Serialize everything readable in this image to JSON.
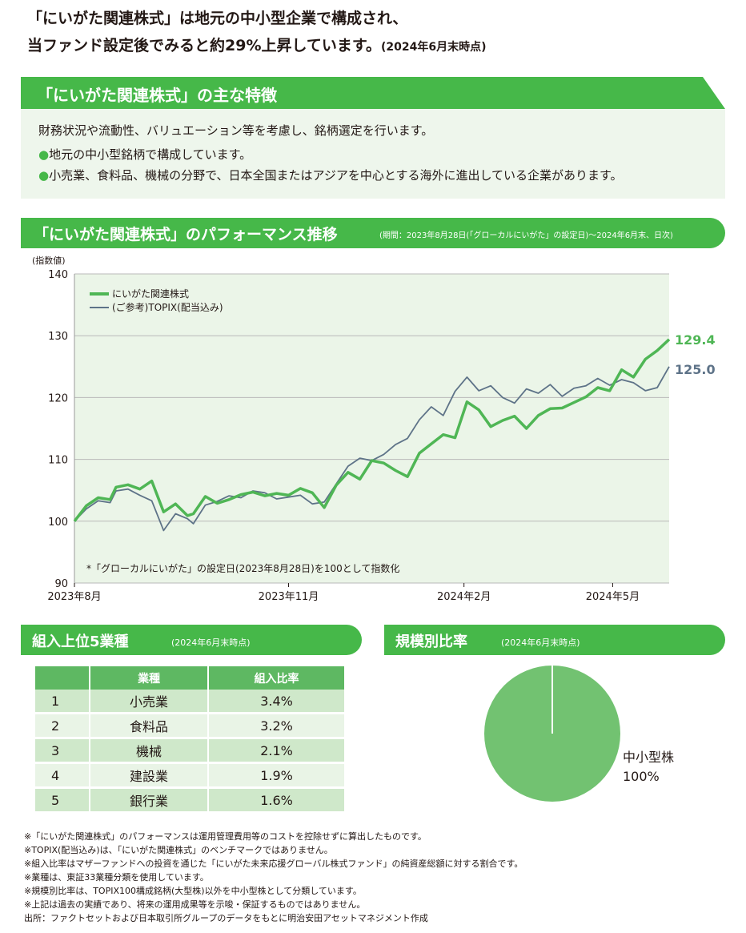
{
  "intro": {
    "line1": "「にいがた関連株式」は地元の中小型企業で構成され、",
    "line2": "当ファンド設定後でみると約29%上昇しています。",
    "line2_note": "(2024年6月末時点)"
  },
  "features": {
    "title": "「にいがた関連株式」の主な特徴",
    "lead": "財務状況や流動性、バリュエーション等を考慮し、銘柄選定を行います。",
    "bullet_mark": "●",
    "bullets": [
      "地元の中小型銘柄で構成しています。",
      "小売業、食料品、機械の分野で、日本全国またはアジアを中心とする海外に進出している企業があります。"
    ]
  },
  "performance": {
    "title": "「にいがた関連株式」のパフォーマンス推移",
    "subtitle": "(期間：2023年8月28日(「グローカルにいがた」の設定日)～2024年6月末、日次)"
  },
  "chart_data": {
    "type": "line",
    "ylabel": "(指数値)",
    "ylim": [
      90,
      140
    ],
    "yticks": [
      "140",
      "130",
      "120",
      "110",
      "100",
      "90"
    ],
    "xticks": [
      "2023年8月",
      "2023年11月",
      "2024年2月",
      "2024年5月"
    ],
    "grid": true,
    "legend_position": "top-left",
    "note": "*「グローカルにいがた」の設定日(2023年8月28日)を100として指数化",
    "series": [
      {
        "name": "にいがた関連株式",
        "color": "#4fb655",
        "end_label": "129.4",
        "x": [
          0,
          0.02,
          0.04,
          0.06,
          0.07,
          0.09,
          0.11,
          0.13,
          0.15,
          0.17,
          0.19,
          0.2,
          0.22,
          0.24,
          0.26,
          0.28,
          0.3,
          0.32,
          0.34,
          0.36,
          0.38,
          0.4,
          0.42,
          0.44,
          0.46,
          0.48,
          0.5,
          0.52,
          0.54,
          0.56,
          0.58,
          0.6,
          0.62,
          0.64,
          0.66,
          0.68,
          0.7,
          0.72,
          0.74,
          0.76,
          0.78,
          0.8,
          0.82,
          0.84,
          0.86,
          0.88,
          0.9,
          0.92,
          0.94,
          0.96,
          0.98,
          1.0
        ],
        "values": [
          100,
          102.5,
          103.8,
          103.5,
          105.5,
          105.9,
          105.2,
          106.5,
          101.5,
          102.8,
          100.9,
          101.2,
          104.0,
          102.9,
          103.5,
          104.3,
          104.7,
          104.1,
          104.5,
          104.2,
          105.3,
          104.6,
          102.2,
          105.8,
          107.9,
          106.8,
          109.8,
          109.4,
          108.2,
          107.2,
          111.0,
          112.5,
          114.0,
          113.5,
          119.3,
          118.0,
          115.3,
          116.3,
          117.0,
          115.0,
          117.1,
          118.2,
          118.3,
          119.2,
          120.1,
          121.6,
          121.1,
          124.5,
          123.3,
          126.2,
          127.6,
          129.4
        ]
      },
      {
        "name": "(ご参考)TOPIX(配当込み)",
        "color": "#5e7388",
        "end_label": "125.0",
        "x": [
          0,
          0.02,
          0.04,
          0.06,
          0.07,
          0.09,
          0.11,
          0.13,
          0.15,
          0.17,
          0.19,
          0.2,
          0.22,
          0.24,
          0.26,
          0.28,
          0.3,
          0.32,
          0.34,
          0.36,
          0.38,
          0.4,
          0.42,
          0.44,
          0.46,
          0.48,
          0.5,
          0.52,
          0.54,
          0.56,
          0.58,
          0.6,
          0.62,
          0.64,
          0.66,
          0.68,
          0.7,
          0.72,
          0.74,
          0.76,
          0.78,
          0.8,
          0.82,
          0.84,
          0.86,
          0.88,
          0.9,
          0.92,
          0.94,
          0.96,
          0.98,
          1.0
        ],
        "values": [
          100,
          102.0,
          103.3,
          103.0,
          104.9,
          105.2,
          104.2,
          103.3,
          98.5,
          101.2,
          100.4,
          99.6,
          102.6,
          103.2,
          104.1,
          103.8,
          104.9,
          104.6,
          103.6,
          103.9,
          104.2,
          102.8,
          103.1,
          106.0,
          108.9,
          110.2,
          109.8,
          110.8,
          112.4,
          113.4,
          116.4,
          118.5,
          117.1,
          121.0,
          123.3,
          121.1,
          121.9,
          120.0,
          119.1,
          121.4,
          120.7,
          122.1,
          120.2,
          121.5,
          121.9,
          123.1,
          122.0,
          122.9,
          122.4,
          121.1,
          121.6,
          125.0
        ]
      }
    ]
  },
  "industries": {
    "title": "組入上位5業種",
    "note": "(2024年6月末時点)",
    "headers": [
      "",
      "業種",
      "組入比率"
    ],
    "rows": [
      {
        "rank": "1",
        "name": "小売業",
        "ratio": "3.4%"
      },
      {
        "rank": "2",
        "name": "食料品",
        "ratio": "3.2%"
      },
      {
        "rank": "3",
        "name": "機械",
        "ratio": "2.1%"
      },
      {
        "rank": "4",
        "name": "建設業",
        "ratio": "1.9%"
      },
      {
        "rank": "5",
        "name": "銀行業",
        "ratio": "1.6%"
      }
    ]
  },
  "scale": {
    "title": "規模別比率",
    "note": "(2024年6月末時点)",
    "pie": {
      "label": "中小型株",
      "value_label": "100%",
      "value": 100,
      "color": "#72c271"
    }
  },
  "footnotes": [
    "※「にいがた関連株式」のパフォーマンスは運用管理費用等のコストを控除せずに算出したものです。",
    "※TOPIX(配当込み)は、「にいがた関連株式」のベンチマークではありません。",
    "※組入比率はマザーファンドへの投資を通じた「にいがた未来応援グローバル株式ファンド」の純資産総額に対する割合です。",
    "※業種は、東証33業種分類を使用しています。",
    "※規模別比率は、TOPIX100構成銘柄(大型株)以外を中小型株として分類しています。",
    "※上記は過去の実績であり、将来の運用成果等を示唆・保証するものではありません。",
    "出所：ファクトセットおよび日本取引所グループのデータをもとに明治安田アセットマネジメント作成"
  ]
}
